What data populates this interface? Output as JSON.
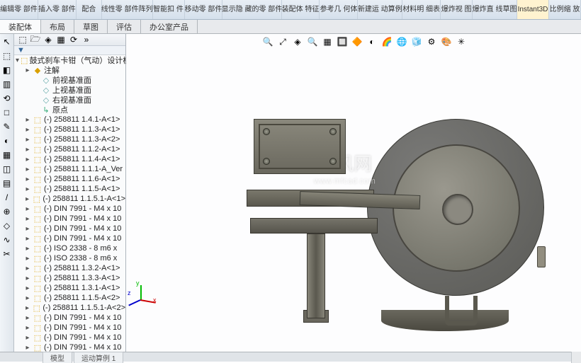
{
  "ribbon": [
    {
      "label": "编辑零\n部件"
    },
    {
      "label": "插入零\n部件"
    },
    {
      "label": "配合"
    },
    {
      "label": "线性零\n部件阵列"
    },
    {
      "label": "智能扣\n件"
    },
    {
      "label": "移动零\n部件"
    },
    {
      "label": "显示隐\n藏的零\n部件"
    },
    {
      "label": "装配体\n特征"
    },
    {
      "label": "参考几\n何体"
    },
    {
      "label": "新建运\n动算例"
    },
    {
      "label": "材料明\n细表"
    },
    {
      "label": "爆炸视\n图"
    },
    {
      "label": "爆炸直\n线草图"
    },
    {
      "label": "Instant3D",
      "active": true
    },
    {
      "label": "比例缩\n放"
    }
  ],
  "tabs": [
    {
      "label": "装配体",
      "active": true
    },
    {
      "label": "布局"
    },
    {
      "label": "草图"
    },
    {
      "label": "评估"
    },
    {
      "label": "办公室产品"
    }
  ],
  "left_tools": [
    "↖",
    "⬚",
    "◧",
    "▥",
    "⟲",
    "□",
    "✎",
    "◐",
    "▦",
    "◫",
    "▤",
    "/",
    "⊕",
    "◇",
    "∿",
    "✂"
  ],
  "tree": {
    "toolbar_icons": [
      "⬚",
      "🗁",
      "◈",
      "▦",
      "⟳",
      "»"
    ],
    "filter_icon": "▼",
    "root": "鼓式刹车卡钳（气动）设计模",
    "annotations": "注解",
    "planes": [
      "前视基准面",
      "上视基准面",
      "右视基准面"
    ],
    "origin": "原点",
    "items": [
      "(-) 258811 1.4.1-A<1>",
      "(-) 258811 1.1.3-A<1>",
      "(-) 258811 1.1.3-A<2>",
      "(-) 258811 1.1.2-A<1>",
      "(-) 258811 1.1.4-A<1>",
      "(-) 258811 1.1.1-A_Ver",
      "(-) 258811 1.1.6-A<1>",
      "(-) 258811 1.1.5-A<1>",
      "(-) 258811 1.1.5.1-A<1>",
      "(-) DIN 7991 - M4 x 10",
      "(-) DIN 7991 - M4 x 10",
      "(-) DIN 7991 - M4 x 10",
      "(-) DIN 7991 - M4 x 10",
      "(-) ISO 2338 - 8 m6 x",
      "(-) ISO 2338 - 8 m6 x",
      "(-) 258811 1.3.2-A<1>",
      "(-) 258811 1.3.3-A<1>",
      "(-) 258811 1.3.1-A<1>",
      "(-) 258811 1.1.5-A<2>",
      "(-) 258811 1.1.5.1-A<2>",
      "(-) DIN 7991 - M4 x 10",
      "(-) DIN 7991 - M4 x 10",
      "(-) DIN 7991 - M4 x 10",
      "(-) DIN 7991 - M4 x 10"
    ]
  },
  "view_tools": [
    "🔍",
    "⤢",
    "◈",
    "🔍",
    "▦",
    "🔲",
    "🔶",
    "◐",
    "🌈",
    "🌐",
    "🧊",
    "⚙",
    "🎨",
    "✳"
  ],
  "triad": {
    "x": "x",
    "y": "y",
    "z": "z"
  },
  "watermark": {
    "title": "沐风网",
    "sub": "www.mfcad.com"
  },
  "bottom": {
    "t1": "模型",
    "t2": "运动算例 1"
  },
  "colors": {
    "model_base": "#6a685e",
    "model_highlight": "#8a887c"
  }
}
